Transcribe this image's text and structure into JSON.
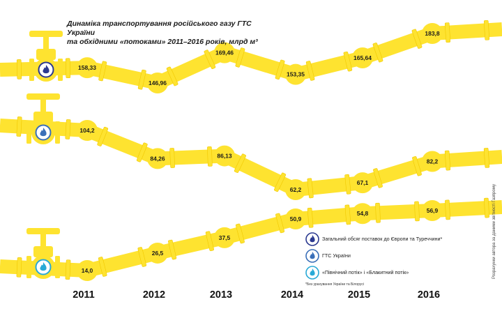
{
  "title_lines": [
    "Динаміка транспортування російського газу ГТС України",
    "та обхідними «потоками» 2011–2016 років, млрд м³"
  ],
  "chart_data": {
    "type": "line",
    "x": [
      "2011",
      "2012",
      "2013",
      "2014",
      "2015",
      "2016"
    ],
    "series": [
      {
        "name": "Загальний обсяг поставок до Європи та Туреччини*",
        "values": [
          158.33,
          146.96,
          169.46,
          153.35,
          165.64,
          183.8
        ],
        "labels": [
          "158,33",
          "146,96",
          "169,46",
          "153,35",
          "165,64",
          "183,8"
        ],
        "icon_color": "#2b3990"
      },
      {
        "name": "ГТС України",
        "values": [
          104.2,
          84.26,
          86.13,
          62.2,
          67.1,
          82.2
        ],
        "labels": [
          "104,2",
          "84,26",
          "86,13",
          "62,2",
          "67,1",
          "82,2"
        ],
        "icon_color": "#3a6fb8"
      },
      {
        "name": "«Північний потік» і «Блакитний потік»",
        "values": [
          14.0,
          26.5,
          37.5,
          50.9,
          54.8,
          56.9
        ],
        "labels": [
          "14,0",
          "26,5",
          "37,5",
          "50,9",
          "54,8",
          "56,9"
        ],
        "icon_color": "#29a9d6"
      }
    ],
    "ylabel": "млрд м³",
    "grid": false,
    "legend": "bottom-right"
  },
  "colors": {
    "pipe": "#fee330",
    "pipe_dark": "#f0c800",
    "text": "#1a1a1a"
  },
  "footnote": "*Без урахування України та Білорусі",
  "credit": "Розрахунки автора за даними звітності Газпрому"
}
